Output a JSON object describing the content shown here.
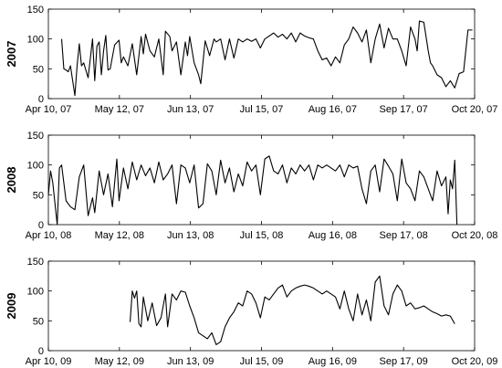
{
  "chart_data": [
    {
      "type": "line",
      "ylabel": "2007",
      "ylim": [
        0,
        150
      ],
      "yticks": [
        0,
        50,
        100,
        150
      ],
      "xlim": [
        "2007-04-10",
        "2007-10-20"
      ],
      "xtick_labels": [
        "Apr 10, 07",
        "May 12, 07",
        "Jun 13, 07",
        "Jul 15, 07",
        "Aug 16, 07",
        "Sep 17, 07",
        "Oct 20, 07"
      ],
      "series": [
        {
          "x": [
            "2007-04-16",
            "2007-04-17",
            "2007-04-18",
            "2007-04-19",
            "2007-04-20",
            "2007-04-21",
            "2007-04-22",
            "2007-04-23",
            "2007-04-24",
            "2007-04-25",
            "2007-04-26",
            "2007-04-28",
            "2007-04-30",
            "2007-05-01",
            "2007-05-02",
            "2007-05-03",
            "2007-05-04",
            "2007-05-05",
            "2007-05-06",
            "2007-05-07",
            "2007-05-08",
            "2007-05-10",
            "2007-05-12",
            "2007-05-13",
            "2007-05-14",
            "2007-05-16",
            "2007-05-18",
            "2007-05-20",
            "2007-05-22",
            "2007-05-23",
            "2007-05-24",
            "2007-05-26",
            "2007-05-28",
            "2007-05-30",
            "2007-06-01",
            "2007-06-02",
            "2007-06-04",
            "2007-06-05",
            "2007-06-07",
            "2007-06-09",
            "2007-06-11",
            "2007-06-12",
            "2007-06-13",
            "2007-06-15",
            "2007-06-17",
            "2007-06-18",
            "2007-06-20",
            "2007-06-22",
            "2007-06-24",
            "2007-06-25",
            "2007-06-27",
            "2007-06-29",
            "2007-07-01",
            "2007-07-03",
            "2007-07-05",
            "2007-07-07",
            "2007-07-09",
            "2007-07-11",
            "2007-07-13",
            "2007-07-15",
            "2007-07-17",
            "2007-07-19",
            "2007-07-21",
            "2007-07-23",
            "2007-07-25",
            "2007-07-27",
            "2007-07-29",
            "2007-07-31",
            "2007-08-02",
            "2007-08-04",
            "2007-08-06",
            "2007-08-08",
            "2007-08-10",
            "2007-08-12",
            "2007-08-14",
            "2007-08-16",
            "2007-08-18",
            "2007-08-20",
            "2007-08-22",
            "2007-08-24",
            "2007-08-26",
            "2007-08-28",
            "2007-08-30",
            "2007-09-01",
            "2007-09-03",
            "2007-09-05",
            "2007-09-07",
            "2007-09-09",
            "2007-09-11",
            "2007-09-13",
            "2007-09-15",
            "2007-09-17",
            "2007-09-19",
            "2007-09-21",
            "2007-09-23",
            "2007-09-24",
            "2007-09-25",
            "2007-09-27",
            "2007-09-29",
            "2007-09-30",
            "2007-10-01",
            "2007-10-03",
            "2007-10-05",
            "2007-10-07",
            "2007-10-09",
            "2007-10-11",
            "2007-10-13",
            "2007-10-15",
            "2007-10-17",
            "2007-10-19"
          ],
          "y": [
            100,
            50,
            48,
            45,
            55,
            30,
            5,
            55,
            92,
            55,
            60,
            35,
            100,
            30,
            88,
            95,
            40,
            80,
            106,
            48,
            50,
            90,
            98,
            60,
            70,
            55,
            92,
            40,
            104,
            75,
            108,
            80,
            70,
            100,
            40,
            113,
            104,
            80,
            95,
            40,
            95,
            72,
            104,
            60,
            40,
            25,
            97,
            72,
            100,
            95,
            100,
            65,
            100,
            68,
            100,
            95,
            100,
            96,
            100,
            85,
            100,
            105,
            110,
            103,
            108,
            100,
            110,
            95,
            110,
            105,
            102,
            100,
            80,
            65,
            68,
            55,
            70,
            60,
            90,
            100,
            120,
            110,
            95,
            115,
            60,
            100,
            125,
            85,
            118,
            100,
            100,
            80,
            55,
            120,
            100,
            80,
            130,
            128,
            80,
            60,
            55,
            40,
            35,
            20,
            30,
            18,
            42,
            45,
            115,
            115
          ]
        }
      ]
    },
    {
      "type": "line",
      "ylabel": "2008",
      "ylim": [
        0,
        150
      ],
      "yticks": [
        0,
        50,
        100,
        150
      ],
      "xlim": [
        "2008-04-10",
        "2008-10-20"
      ],
      "xtick_labels": [
        "Apr 10, 08",
        "May 12, 08",
        "Jun 13, 08",
        "Jul 15, 08",
        "Aug 16, 08",
        "Sep 17, 08",
        "Oct 20, 08"
      ],
      "series": [
        {
          "x": [
            "2008-04-10",
            "2008-04-11",
            "2008-04-12",
            "2008-04-14",
            "2008-04-15",
            "2008-04-16",
            "2008-04-18",
            "2008-04-20",
            "2008-04-22",
            "2008-04-24",
            "2008-04-26",
            "2008-04-28",
            "2008-04-30",
            "2008-05-01",
            "2008-05-03",
            "2008-05-05",
            "2008-05-07",
            "2008-05-09",
            "2008-05-11",
            "2008-05-12",
            "2008-05-14",
            "2008-05-16",
            "2008-05-18",
            "2008-05-20",
            "2008-05-22",
            "2008-05-24",
            "2008-05-26",
            "2008-05-28",
            "2008-05-30",
            "2008-06-01",
            "2008-06-03",
            "2008-06-05",
            "2008-06-07",
            "2008-06-09",
            "2008-06-11",
            "2008-06-13",
            "2008-06-15",
            "2008-06-17",
            "2008-06-19",
            "2008-06-21",
            "2008-06-23",
            "2008-06-25",
            "2008-06-27",
            "2008-06-29",
            "2008-07-01",
            "2008-07-03",
            "2008-07-05",
            "2008-07-07",
            "2008-07-09",
            "2008-07-11",
            "2008-07-13",
            "2008-07-15",
            "2008-07-17",
            "2008-07-19",
            "2008-07-21",
            "2008-07-23",
            "2008-07-25",
            "2008-07-27",
            "2008-07-29",
            "2008-07-31",
            "2008-08-02",
            "2008-08-04",
            "2008-08-06",
            "2008-08-08",
            "2008-08-10",
            "2008-08-12",
            "2008-08-14",
            "2008-08-16",
            "2008-08-18",
            "2008-08-20",
            "2008-08-22",
            "2008-08-24",
            "2008-08-26",
            "2008-08-28",
            "2008-08-30",
            "2008-09-01",
            "2008-09-03",
            "2008-09-05",
            "2008-09-07",
            "2008-09-09",
            "2008-09-11",
            "2008-09-13",
            "2008-09-15",
            "2008-09-17",
            "2008-09-19",
            "2008-09-21",
            "2008-09-23",
            "2008-09-25",
            "2008-09-27",
            "2008-09-29",
            "2008-10-01",
            "2008-10-03",
            "2008-10-05",
            "2008-10-07",
            "2008-10-08",
            "2008-10-09",
            "2008-10-10",
            "2008-10-11",
            "2008-10-12"
          ],
          "y": [
            50,
            90,
            70,
            0,
            95,
            100,
            40,
            30,
            25,
            80,
            100,
            15,
            45,
            20,
            90,
            50,
            85,
            30,
            110,
            40,
            95,
            60,
            105,
            75,
            100,
            82,
            95,
            70,
            105,
            75,
            85,
            100,
            35,
            100,
            95,
            70,
            100,
            28,
            35,
            102,
            90,
            50,
            108,
            70,
            95,
            55,
            85,
            65,
            105,
            90,
            100,
            50,
            110,
            115,
            90,
            85,
            100,
            70,
            95,
            85,
            100,
            90,
            100,
            75,
            100,
            95,
            100,
            95,
            90,
            100,
            80,
            100,
            95,
            98,
            60,
            35,
            90,
            100,
            55,
            110,
            98,
            85,
            40,
            110,
            70,
            60,
            40,
            90,
            80,
            60,
            40,
            90,
            65,
            80,
            18,
            75,
            60,
            108,
            0
          ]
        }
      ]
    },
    {
      "type": "line",
      "ylabel": "2009",
      "ylim": [
        0,
        150
      ],
      "yticks": [
        0,
        50,
        100,
        150
      ],
      "xlim": [
        "2009-04-10",
        "2009-10-20"
      ],
      "xtick_labels": [
        "Apr 10, 09",
        "May 12, 09",
        "Jun 13, 09",
        "Jul 15, 09",
        "Aug 16, 09",
        "Sep 17, 09",
        "Oct 20, 09"
      ],
      "series": [
        {
          "x": [
            "2009-05-17",
            "2009-05-18",
            "2009-05-19",
            "2009-05-20",
            "2009-05-21",
            "2009-05-22",
            "2009-05-23",
            "2009-05-25",
            "2009-05-27",
            "2009-05-29",
            "2009-05-31",
            "2009-06-02",
            "2009-06-03",
            "2009-06-05",
            "2009-06-07",
            "2009-06-09",
            "2009-06-11",
            "2009-06-13",
            "2009-06-15",
            "2009-06-17",
            "2009-06-19",
            "2009-06-21",
            "2009-06-23",
            "2009-06-25",
            "2009-06-27",
            "2009-06-29",
            "2009-07-01",
            "2009-07-03",
            "2009-07-05",
            "2009-07-07",
            "2009-07-09",
            "2009-07-11",
            "2009-07-13",
            "2009-07-15",
            "2009-07-17",
            "2009-07-19",
            "2009-07-21",
            "2009-07-23",
            "2009-07-25",
            "2009-07-27",
            "2009-07-29",
            "2009-07-31",
            "2009-08-02",
            "2009-08-04",
            "2009-08-06",
            "2009-08-08",
            "2009-08-10",
            "2009-08-12",
            "2009-08-14",
            "2009-08-16",
            "2009-08-18",
            "2009-08-20",
            "2009-08-22",
            "2009-08-24",
            "2009-08-26",
            "2009-08-28",
            "2009-08-30",
            "2009-09-01",
            "2009-09-03",
            "2009-09-05",
            "2009-09-07",
            "2009-09-09",
            "2009-09-11",
            "2009-09-13",
            "2009-09-15",
            "2009-09-17",
            "2009-09-19",
            "2009-09-21",
            "2009-09-23",
            "2009-09-25",
            "2009-09-27",
            "2009-09-29",
            "2009-10-01",
            "2009-10-03",
            "2009-10-05",
            "2009-10-07",
            "2009-10-09",
            "2009-10-11"
          ],
          "y": [
            48,
            100,
            88,
            100,
            45,
            40,
            90,
            50,
            80,
            42,
            55,
            95,
            40,
            95,
            85,
            100,
            98,
            75,
            55,
            30,
            25,
            20,
            30,
            10,
            15,
            40,
            55,
            65,
            80,
            75,
            100,
            95,
            80,
            55,
            90,
            85,
            95,
            105,
            110,
            90,
            100,
            105,
            108,
            110,
            108,
            105,
            100,
            95,
            100,
            95,
            90,
            70,
            100,
            70,
            50,
            95,
            60,
            85,
            50,
            115,
            125,
            75,
            60,
            95,
            110,
            100,
            75,
            80,
            70,
            72,
            75,
            70,
            65,
            62,
            58,
            60,
            58,
            45
          ]
        }
      ]
    }
  ]
}
